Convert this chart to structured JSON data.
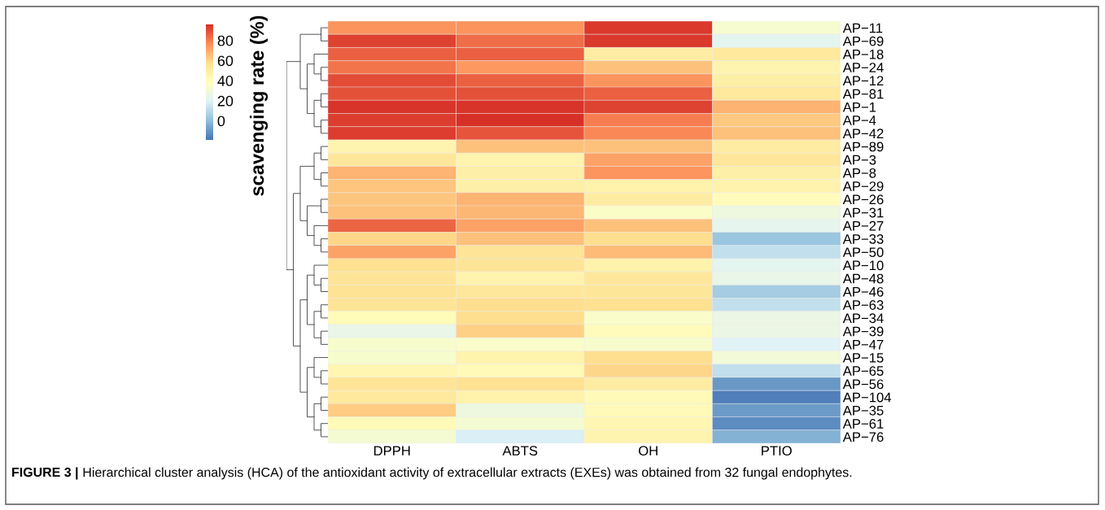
{
  "chart_data": {
    "type": "heatmap",
    "categories": [
      "DPPH",
      "ABTS",
      "OH",
      "PTIO"
    ],
    "y_categories": [
      "AP−11",
      "AP−69",
      "AP−18",
      "AP−24",
      "AP−12",
      "AP−81",
      "AP−1",
      "AP−4",
      "AP−42",
      "AP−89",
      "AP−3",
      "AP−8",
      "AP−29",
      "AP−26",
      "AP−31",
      "AP−27",
      "AP−33",
      "AP−50",
      "AP−10",
      "AP−48",
      "AP−46",
      "AP−63",
      "AP−34",
      "AP−39",
      "AP−47",
      "AP−15",
      "AP−65",
      "AP−56",
      "AP−104",
      "AP−35",
      "AP−61",
      "AP−76"
    ],
    "cells": [
      [
        75,
        75,
        94,
        33
      ],
      [
        92,
        83,
        94,
        22
      ],
      [
        86,
        86,
        50,
        52
      ],
      [
        82,
        74,
        65,
        45
      ],
      [
        90,
        86,
        75,
        48
      ],
      [
        89,
        89,
        86,
        52
      ],
      [
        95,
        95,
        92,
        68
      ],
      [
        93,
        96,
        80,
        63
      ],
      [
        93,
        88,
        78,
        65
      ],
      [
        45,
        65,
        65,
        50
      ],
      [
        53,
        46,
        72,
        53
      ],
      [
        68,
        48,
        75,
        48
      ],
      [
        64,
        48,
        47,
        46
      ],
      [
        64,
        68,
        50,
        40
      ],
      [
        65,
        67,
        36,
        28
      ],
      [
        85,
        72,
        65,
        23
      ],
      [
        60,
        65,
        58,
        3
      ],
      [
        72,
        55,
        66,
        12
      ],
      [
        57,
        55,
        47,
        22
      ],
      [
        55,
        46,
        53,
        25
      ],
      [
        56,
        53,
        54,
        5
      ],
      [
        55,
        58,
        57,
        12
      ],
      [
        41,
        58,
        35,
        26
      ],
      [
        25,
        61,
        40,
        26
      ],
      [
        34,
        35,
        34,
        20
      ],
      [
        34,
        46,
        58,
        30
      ],
      [
        44,
        42,
        60,
        12
      ],
      [
        55,
        57,
        50,
        -10
      ],
      [
        52,
        47,
        42,
        -16
      ],
      [
        62,
        28,
        42,
        -9
      ],
      [
        42,
        32,
        44,
        -13
      ],
      [
        32,
        18,
        45,
        -3
      ]
    ],
    "colors": [
      "#4575b4",
      "#91bfdb",
      "#e0f3f8",
      "#ffffbf",
      "#fee090",
      "#fc8d59",
      "#d73027"
    ],
    "clim": [
      -19,
      96
    ],
    "cticks": [
      0,
      20,
      40,
      60,
      80
    ],
    "clabel": "scavenging rate (%)",
    "annotations": [
      "FIGURE 3 |",
      "Hierarchical cluster analysis (HCA) of the antioxidant activity of extracellular extracts (EXEs) was obtained from 32 fungal endophytes."
    ]
  }
}
